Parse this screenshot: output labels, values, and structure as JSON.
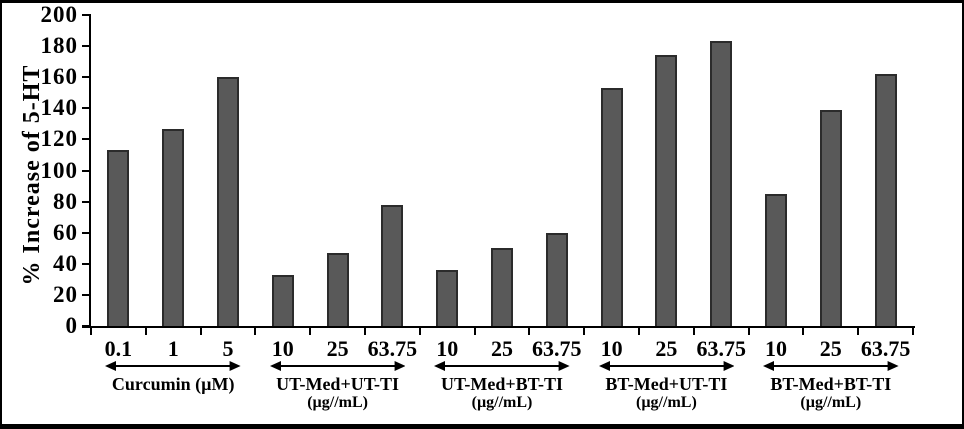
{
  "chart_data": {
    "type": "bar",
    "title": "",
    "ylabel": "% Increase of 5-HT",
    "xlabel": "",
    "ylim": [
      0,
      200
    ],
    "ytick_step": 20,
    "yticks": [
      0,
      20,
      40,
      60,
      80,
      100,
      120,
      140,
      160,
      180,
      200
    ],
    "grid": false,
    "legend": null,
    "bar_fill_color": "#595959",
    "bar_border_color": "#2b2b2b",
    "axis_color": "#000000",
    "groups": [
      {
        "label": "Curcumin (µM)",
        "sublabel": "",
        "categories": [
          "0.1",
          "1",
          "5"
        ],
        "values": [
          113,
          127,
          160
        ]
      },
      {
        "label": "UT-Med+UT-TI",
        "sublabel": "(µg//mL)",
        "categories": [
          "10",
          "25",
          "63.75"
        ],
        "values": [
          33,
          47,
          78
        ]
      },
      {
        "label": "UT-Med+BT-TI",
        "sublabel": "(µg//mL)",
        "categories": [
          "10",
          "25",
          "63.75"
        ],
        "values": [
          36,
          50,
          60
        ]
      },
      {
        "label": "BT-Med+UT-TI",
        "sublabel": "(µg//mL)",
        "categories": [
          "10",
          "25",
          "63.75"
        ],
        "values": [
          153,
          174,
          183
        ]
      },
      {
        "label": "BT-Med+BT-TI",
        "sublabel": "(µg//mL)",
        "categories": [
          "10",
          "25",
          "63.75"
        ],
        "values": [
          85,
          139,
          162
        ]
      }
    ]
  }
}
